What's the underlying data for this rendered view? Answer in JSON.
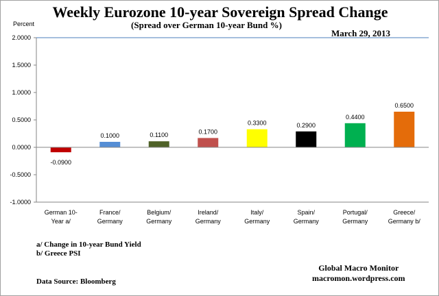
{
  "chart_data": {
    "type": "bar",
    "title": "Weekly Eurozone 10-year Sovereign Spread Change",
    "subtitle": "(Spread over German 10-year Bund  %)",
    "date": "March 29, 2013",
    "ylabel": "Percent",
    "xlabel": "",
    "ylim": [
      -1.0,
      2.0
    ],
    "yticks": [
      "2.0000",
      "1.5000",
      "1.0000",
      "0.5000",
      "0.0000",
      "-0.5000",
      "-1.0000"
    ],
    "ytick_values": [
      2.0,
      1.5,
      1.0,
      0.5,
      0.0,
      -0.5,
      -1.0
    ],
    "grid": false,
    "categories": [
      [
        "German    10-",
        "Year a/"
      ],
      [
        "France/",
        "Germany"
      ],
      [
        "Belgium/",
        "Germany"
      ],
      [
        "Ireland/",
        "Germany"
      ],
      [
        "Italy/",
        "Germany"
      ],
      [
        "Spain/",
        "Germany"
      ],
      [
        "Portugal/",
        "Germany"
      ],
      [
        "Greece/",
        "Germany b/"
      ]
    ],
    "values": [
      -0.09,
      0.1,
      0.11,
      0.17,
      0.33,
      0.29,
      0.44,
      0.65
    ],
    "data_labels": [
      "-0.0900",
      "0.1000",
      "0.1100",
      "0.1700",
      "0.3300",
      "0.2900",
      "0.4400",
      "0.6500"
    ],
    "colors": [
      "#c00000",
      "#558ed5",
      "#4f6228",
      "#c0504d",
      "#ffff00",
      "#000000",
      "#00b050",
      "#e46c0a"
    ]
  },
  "notes": [
    "a/ Change in 10-year Bund  Yield",
    "b/ Greece PSI"
  ],
  "source": "Data Source:  Bloomberg",
  "brand": [
    "Global Macro Monitor",
    "macromon.wordpress.com"
  ]
}
